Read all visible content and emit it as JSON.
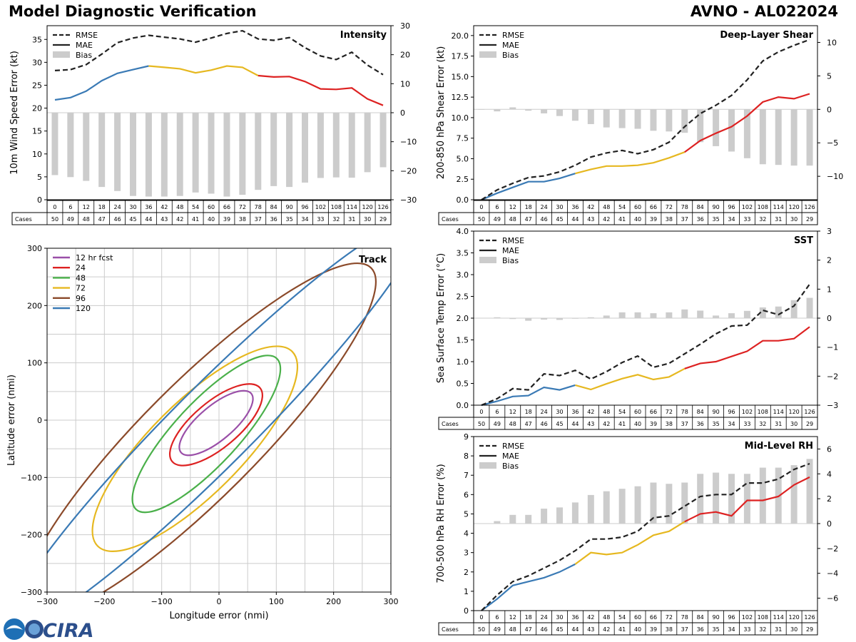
{
  "header": {
    "title": "Model Diagnostic Verification",
    "storm": "AVNO - AL022024"
  },
  "logo": {
    "text": "CIRA"
  },
  "colors": {
    "early": "#3a7ab5",
    "mid": "#e6b820",
    "late": "#dd2222",
    "rmse": "#222222",
    "bias": "#cccccc",
    "grid": "#cccccc"
  },
  "legend_labels": [
    "RMSE",
    "MAE",
    "Bias"
  ],
  "hours": [
    "0",
    "6",
    "12",
    "18",
    "24",
    "30",
    "36",
    "42",
    "48",
    "54",
    "60",
    "66",
    "72",
    "78",
    "84",
    "90",
    "96",
    "102",
    "108",
    "114",
    "120",
    "126"
  ],
  "cases_label": "Cases",
  "cases_intensity": [
    "50",
    "49",
    "48",
    "47",
    "46",
    "45",
    "44",
    "43",
    "42",
    "41",
    "40",
    "39",
    "38",
    "37",
    "36",
    "35",
    "34",
    "33",
    "32",
    "31",
    "30",
    "29"
  ],
  "cases_other": [
    "50",
    "49",
    "48",
    "47",
    "46",
    "45",
    "44",
    "43",
    "42",
    "41",
    "40",
    "39",
    "38",
    "37",
    "36",
    "35",
    "34",
    "33",
    "32",
    "31",
    "30",
    "29"
  ],
  "chart_data": [
    {
      "id": "intensity",
      "type": "line",
      "title": "Intensity",
      "ylabel": "10m Wind Speed Error (kt)",
      "ylim": [
        0,
        38
      ],
      "yticks": [
        0,
        5,
        10,
        15,
        20,
        25,
        30,
        35
      ],
      "y2lim": [
        -30,
        30
      ],
      "y2ticks": [
        -30,
        -20,
        -10,
        0,
        10,
        20,
        30
      ],
      "rmse": [
        28.2,
        28.4,
        29.5,
        31.8,
        34.3,
        35.3,
        35.9,
        35.5,
        35.1,
        34.4,
        35.3,
        36.3,
        36.9,
        35.1,
        34.8,
        35.4,
        33.2,
        31.4,
        30.6,
        32.2,
        29.4,
        27.3
      ],
      "mae": [
        21.8,
        22.3,
        23.7,
        26,
        27.6,
        28.4,
        29.2,
        28.9,
        28.6,
        27.7,
        28.3,
        29.2,
        28.9,
        27.1,
        26.8,
        26.9,
        25.8,
        24.2,
        24.1,
        24.4,
        22,
        20.6
      ],
      "bias": [
        -21.5,
        -22.2,
        -23.5,
        -25.6,
        -27,
        -28.7,
        -28.9,
        -28.9,
        -28.7,
        -27.5,
        -27.9,
        -28.9,
        -28.3,
        -26.6,
        -25.3,
        -25.6,
        -24.1,
        -22.5,
        -22.3,
        -22.4,
        -20.5,
        -18.8
      ]
    },
    {
      "id": "shear",
      "type": "line",
      "title": "Deep-Layer Shear",
      "ylabel": "200-850 hPa Shear Error (kt)",
      "ylim": [
        0,
        21.2
      ],
      "yticks": [
        0,
        2.5,
        5,
        7.5,
        10,
        12.5,
        15,
        17.5,
        20
      ],
      "ytick_labels": [
        "0.0",
        "2.5",
        "5.0",
        "7.5",
        "10.0",
        "12.5",
        "15.0",
        "17.5",
        "20.0"
      ],
      "y2lim": [
        -13.5,
        12.5
      ],
      "y2ticks": [
        -10,
        -5,
        0,
        5,
        10
      ],
      "rmse": [
        0,
        1.2,
        2,
        2.7,
        2.9,
        3.4,
        4.2,
        5.2,
        5.7,
        6,
        5.6,
        6.1,
        7,
        8.9,
        10.5,
        11.5,
        12.7,
        14.6,
        16.9,
        18,
        18.8,
        19.5
      ],
      "mae": [
        0,
        0.8,
        1.5,
        2.2,
        2.2,
        2.6,
        3.2,
        3.7,
        4.1,
        4.1,
        4.2,
        4.5,
        5.1,
        5.8,
        7.2,
        8.1,
        8.9,
        10.2,
        11.9,
        12.5,
        12.3,
        12.9
      ],
      "bias": [
        0,
        -0.3,
        0.3,
        -0.2,
        -0.6,
        -1,
        -1.7,
        -2.2,
        -2.7,
        -2.8,
        -2.9,
        -3.2,
        -3.3,
        -3.5,
        -4.9,
        -5.5,
        -6.3,
        -7.3,
        -8.2,
        -8.3,
        -8.4,
        -8.4
      ]
    },
    {
      "id": "sst",
      "type": "line",
      "title": "SST",
      "ylabel": "Sea Surface Temp Error (°C)",
      "ylim": [
        0,
        4
      ],
      "yticks": [
        0,
        0.5,
        1,
        1.5,
        2,
        2.5,
        3,
        3.5,
        4
      ],
      "ytick_labels": [
        "0.0",
        "0.5",
        "1.0",
        "1.5",
        "2.0",
        "2.5",
        "3.0",
        "3.5",
        "4.0"
      ],
      "y2lim": [
        -3,
        3
      ],
      "y2ticks": [
        -3,
        -2,
        -1,
        0,
        1,
        2,
        3
      ],
      "rmse": [
        0,
        0.15,
        0.38,
        0.35,
        0.72,
        0.68,
        0.8,
        0.6,
        0.77,
        0.98,
        1.13,
        0.87,
        0.96,
        1.18,
        1.4,
        1.64,
        1.82,
        1.84,
        2.18,
        2.08,
        2.28,
        2.78
      ],
      "mae": [
        0,
        0.09,
        0.2,
        0.22,
        0.41,
        0.35,
        0.46,
        0.36,
        0.49,
        0.61,
        0.7,
        0.59,
        0.65,
        0.84,
        0.96,
        1.0,
        1.12,
        1.24,
        1.48,
        1.48,
        1.53,
        1.8
      ],
      "bias": [
        0,
        0.03,
        -0.03,
        -0.09,
        -0.05,
        -0.06,
        -0.02,
        0.03,
        0.09,
        0.2,
        0.2,
        0.17,
        0.2,
        0.3,
        0.26,
        0.09,
        0.17,
        0.25,
        0.37,
        0.4,
        0.62,
        0.7
      ]
    },
    {
      "id": "rh",
      "type": "line",
      "title": "Mid-Level RH",
      "ylabel": "700-500 hPa RH Error (%)",
      "ylim": [
        0,
        9
      ],
      "yticks": [
        0,
        1,
        2,
        3,
        4,
        5,
        6,
        7,
        8,
        9
      ],
      "y2lim": [
        -7,
        7
      ],
      "y2ticks": [
        -6,
        -4,
        -2,
        0,
        2,
        4,
        6
      ],
      "rmse": [
        0,
        0.8,
        1.5,
        1.8,
        2.2,
        2.6,
        3.1,
        3.7,
        3.7,
        3.8,
        4.1,
        4.8,
        4.9,
        5.4,
        5.9,
        6,
        6,
        6.6,
        6.6,
        6.8,
        7.3,
        7.6
      ],
      "mae": [
        0,
        0.6,
        1.3,
        1.5,
        1.7,
        2,
        2.4,
        3,
        2.9,
        3.0,
        3.4,
        3.9,
        4.1,
        4.6,
        5,
        5.1,
        4.9,
        5.7,
        5.7,
        5.9,
        6.5,
        6.9
      ],
      "bias": [
        0,
        0.2,
        0.7,
        0.7,
        1.2,
        1.3,
        1.7,
        2.3,
        2.6,
        2.8,
        3,
        3.3,
        3.2,
        3.3,
        4,
        4.1,
        4.0,
        4,
        4.5,
        4.5,
        4.7,
        5.2
      ]
    },
    {
      "id": "track",
      "type": "scatter",
      "title": "Track",
      "xlabel": "Longitude error (nmi)",
      "ylabel": "Latitude error (nmi)",
      "xlim": [
        -300,
        300
      ],
      "ylim": [
        -300,
        300
      ],
      "ticks": [
        -300,
        -200,
        -100,
        0,
        100,
        200,
        300
      ],
      "ellipses": [
        {
          "label": "12 hr fcst",
          "color": "#9a4fa8",
          "cx": -5,
          "cy": -5,
          "a": 80,
          "b": 30,
          "angle": 40
        },
        {
          "label": "24",
          "color": "#dd2222",
          "cx": -5,
          "cy": -8,
          "a": 100,
          "b": 40,
          "angle": 40
        },
        {
          "label": "48",
          "color": "#4ab04a",
          "cx": -22,
          "cy": -24,
          "a": 180,
          "b": 55,
          "angle": 47
        },
        {
          "label": "72",
          "color": "#e6b820",
          "cx": -42,
          "cy": -50,
          "a": 240,
          "b": 80,
          "angle": 45
        },
        {
          "label": "96",
          "color": "#8b4a2a",
          "cx": -35,
          "cy": -35,
          "a": 425,
          "b": 100,
          "angle": 45
        },
        {
          "label": "120",
          "color": "#3a7ab5",
          "cx": -10,
          "cy": -10,
          "a": 500,
          "b": 70,
          "angle": 45
        }
      ]
    }
  ]
}
